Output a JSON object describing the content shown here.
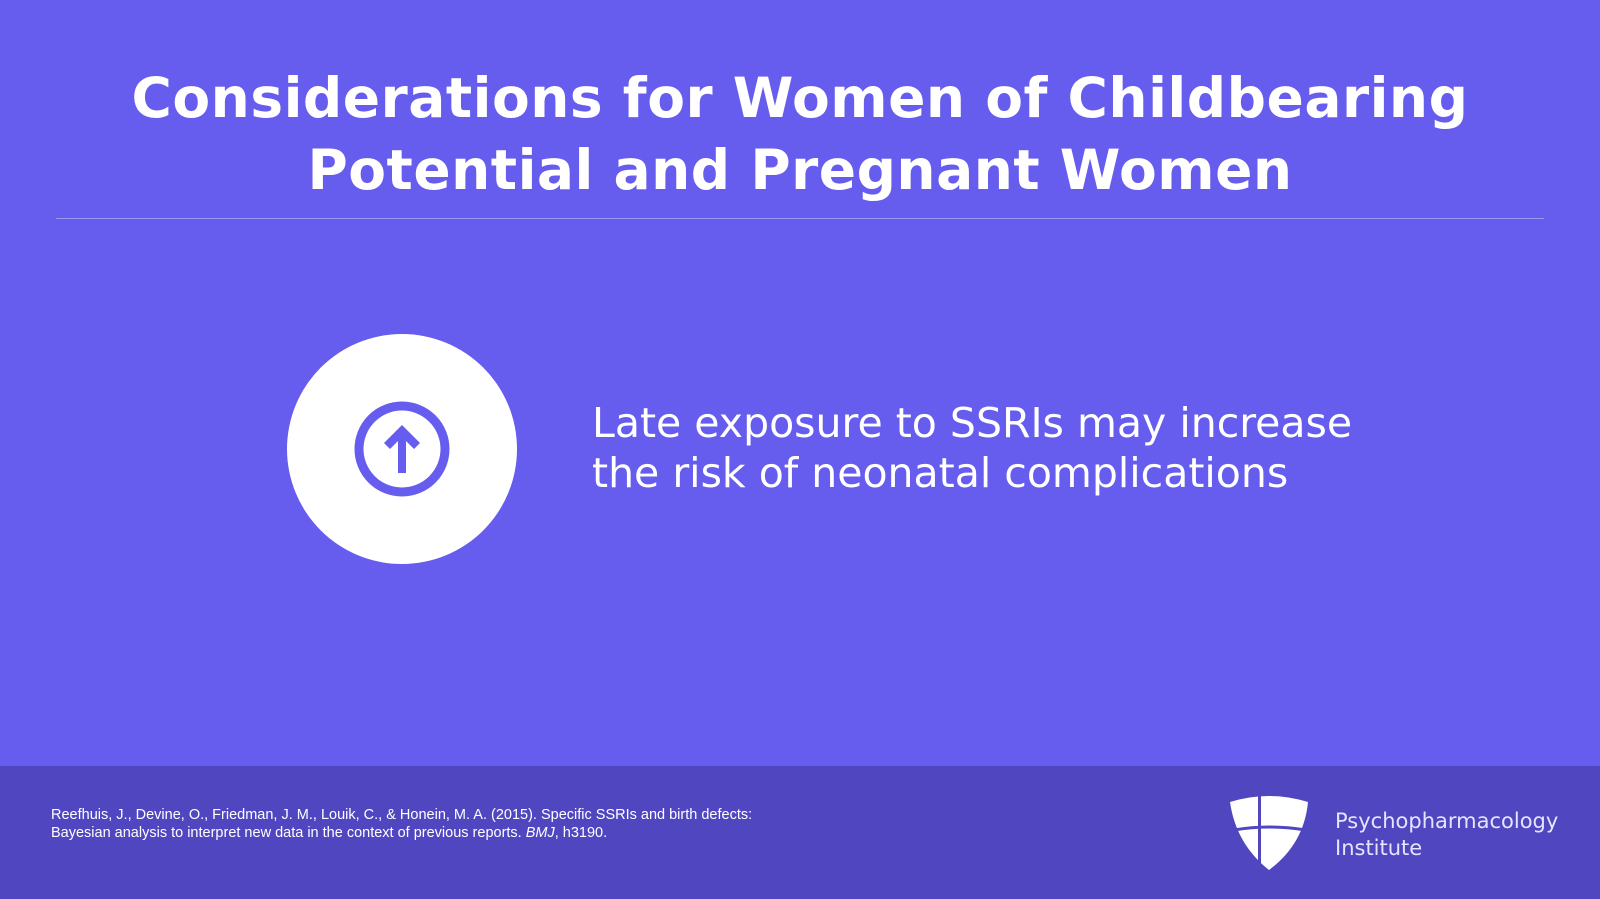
{
  "slide": {
    "title_line1": "Considerations for Women of Childbearing",
    "title_line2": "Potential and Pregnant Women",
    "icon": "arrow-up-circle-icon",
    "point_line1": "Late exposure to SSRIs may increase",
    "point_line2": "the risk of neonatal complications"
  },
  "footer": {
    "reference_part1": "Reefhuis, J., Devine, O., Friedman, J. M., Louik, C., & Honein, M. A. (2015). Specific SSRIs and birth defects: Bayesian analysis to interpret new data in the context of previous reports. ",
    "reference_journal": "BMJ",
    "reference_part2": ", h3190.",
    "brand_line1": "Psychopharmacology",
    "brand_line2": "Institute"
  },
  "colors": {
    "background": "#665cee",
    "footer": "#4f46c0",
    "text": "#ffffff"
  }
}
